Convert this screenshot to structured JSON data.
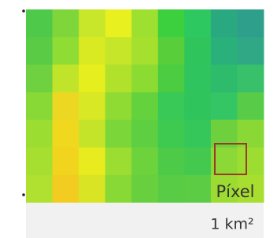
{
  "labels": {
    "pixel": "Píxel",
    "area": "1 km²"
  }
}
